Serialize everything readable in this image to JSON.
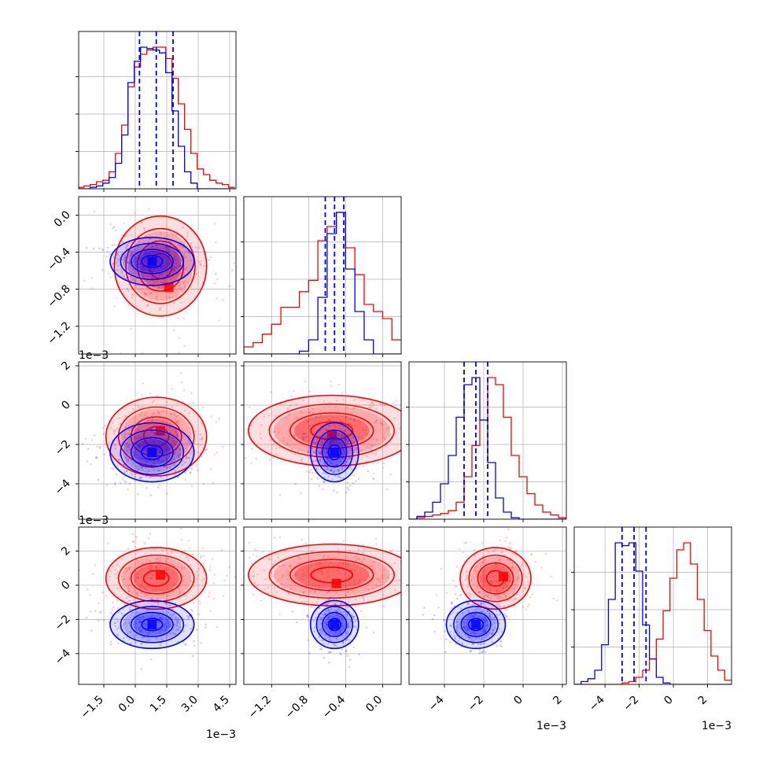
{
  "chart_data": {
    "type": "corner",
    "grid": true,
    "colors": {
      "series_a": "#ff0000",
      "series_b": "#0000ff"
    },
    "parameters": [
      {
        "ticks": [
          -1.5,
          0.0,
          1.5,
          3.0,
          4.5
        ],
        "tick_labels": [
          "−1.5",
          "0.0",
          "1.5",
          "3.0",
          "4.5"
        ],
        "range": [
          -2.7,
          4.8
        ],
        "offset_label": "1e−3"
      },
      {
        "ticks": [
          -1.2,
          -0.8,
          -0.4,
          0.0
        ],
        "tick_labels": [
          "−1.2",
          "−0.8",
          "−0.4",
          "0.0"
        ],
        "range": [
          -1.5,
          0.2
        ],
        "offset_label": "1e−3"
      },
      {
        "ticks": [
          -4,
          -2,
          0,
          2
        ],
        "tick_labels": [
          "−4",
          "−2",
          "0",
          "2"
        ],
        "range": [
          -5.8,
          2.2
        ],
        "offset_label": "1e−3"
      },
      {
        "ticks": [
          -4,
          -2,
          0,
          2
        ],
        "tick_labels": [
          "−4",
          "−2",
          "0",
          "2"
        ],
        "range": [
          -5.8,
          3.4
        ],
        "offset_label": "1e−3"
      }
    ],
    "series": [
      {
        "color": "red",
        "marginals": [
          {
            "x": [
              -2.6,
              -2.3,
              -2.0,
              -1.7,
              -1.4,
              -1.1,
              -0.8,
              -0.5,
              -0.2,
              0.1,
              0.4,
              0.7,
              1.0,
              1.3,
              1.6,
              1.9,
              2.2,
              2.5,
              2.8,
              3.1,
              3.4,
              3.7,
              4.0,
              4.3,
              4.6
            ],
            "y": [
              0.01,
              0.02,
              0.03,
              0.05,
              0.06,
              0.12,
              0.25,
              0.45,
              0.72,
              0.86,
              0.95,
              0.98,
              1.0,
              1.0,
              0.92,
              0.78,
              0.6,
              0.42,
              0.25,
              0.14,
              0.1,
              0.06,
              0.04,
              0.03,
              0.01
            ]
          },
          {
            "x": [
              -1.45,
              -1.35,
              -1.25,
              -1.15,
              -1.05,
              -0.95,
              -0.85,
              -0.75,
              -0.65,
              -0.55,
              -0.45,
              -0.35,
              -0.25,
              -0.15,
              -0.05,
              0.05,
              0.15
            ],
            "y": [
              0.05,
              0.08,
              0.14,
              0.21,
              0.33,
              0.33,
              0.44,
              0.52,
              0.8,
              0.9,
              1.0,
              0.75,
              0.56,
              0.35,
              0.3,
              0.25,
              0.1
            ]
          },
          {
            "x": [
              -5.6,
              -5.2,
              -4.8,
              -4.4,
              -4.0,
              -3.6,
              -3.2,
              -2.8,
              -2.4,
              -2.0,
              -1.6,
              -1.2,
              -0.8,
              -0.4,
              0.0,
              0.4,
              0.8,
              1.2,
              1.6,
              2.0
            ],
            "y": [
              0.0,
              0.01,
              0.02,
              0.03,
              0.04,
              0.06,
              0.12,
              0.3,
              0.52,
              0.7,
              1.0,
              0.95,
              0.72,
              0.45,
              0.3,
              0.18,
              0.1,
              0.05,
              0.03,
              0.01
            ]
          },
          {
            "x": [
              -5.6,
              -5.2,
              -4.8,
              -4.4,
              -4.0,
              -3.6,
              -3.2,
              -2.8,
              -2.4,
              -2.0,
              -1.6,
              -1.2,
              -0.8,
              -0.4,
              0.0,
              0.4,
              0.8,
              1.2,
              1.6,
              2.0,
              2.4,
              2.8,
              3.2
            ],
            "y": [
              0.0,
              0.0,
              0.0,
              0.0,
              0.0,
              0.0,
              0.0,
              0.01,
              0.02,
              0.05,
              0.1,
              0.18,
              0.32,
              0.52,
              0.75,
              0.95,
              1.0,
              0.85,
              0.6,
              0.38,
              0.2,
              0.1,
              0.03
            ]
          }
        ],
        "contours_2d": [
          {
            "px": 0,
            "py": 1,
            "center": [
              1.2,
              -0.55
            ],
            "sigma": [
              1.1,
              0.27
            ],
            "peak": [
              1.6,
              -0.78
            ]
          },
          {
            "px": 0,
            "py": 2,
            "center": [
              1.0,
              -1.6
            ],
            "sigma": [
              1.2,
              1.0
            ],
            "peak": [
              1.2,
              -1.3
            ]
          },
          {
            "px": 1,
            "py": 2,
            "center": [
              -0.55,
              -1.3
            ],
            "sigma": [
              0.45,
              0.9
            ],
            "peak": [
              -0.55,
              -1.5
            ]
          },
          {
            "px": 0,
            "py": 3,
            "center": [
              1.0,
              0.4
            ],
            "sigma": [
              1.2,
              0.9
            ],
            "peak": [
              1.2,
              0.6
            ]
          },
          {
            "px": 1,
            "py": 3,
            "center": [
              -0.55,
              0.6
            ],
            "sigma": [
              0.45,
              0.9
            ],
            "peak": [
              -0.5,
              0.1
            ]
          },
          {
            "px": 2,
            "py": 3,
            "center": [
              -1.4,
              0.4
            ],
            "sigma": [
              0.9,
              0.9
            ],
            "peak": [
              -1.0,
              0.5
            ]
          }
        ]
      },
      {
        "color": "blue",
        "marginals": [
          {
            "x": [
              -2.6,
              -2.3,
              -2.0,
              -1.7,
              -1.4,
              -1.1,
              -0.8,
              -0.5,
              -0.2,
              0.1,
              0.4,
              0.7,
              1.0,
              1.3,
              1.6,
              1.9,
              2.2,
              2.5,
              2.8,
              3.1,
              3.4,
              3.7,
              4.0,
              4.3,
              4.6
            ],
            "y": [
              0.0,
              0.0,
              0.01,
              0.02,
              0.04,
              0.08,
              0.18,
              0.38,
              0.75,
              0.9,
              1.0,
              0.99,
              0.98,
              0.96,
              0.82,
              0.55,
              0.3,
              0.12,
              0.04,
              0.0,
              0.0,
              0.0,
              0.0,
              0.0,
              0.0
            ]
          },
          {
            "x": [
              -1.45,
              -1.35,
              -1.25,
              -1.15,
              -1.05,
              -0.95,
              -0.85,
              -0.75,
              -0.65,
              -0.55,
              -0.45,
              -0.35,
              -0.25,
              -0.15,
              -0.05,
              0.05,
              0.15
            ],
            "y": [
              0.0,
              0.0,
              0.0,
              0.0,
              0.0,
              0.0,
              0.02,
              0.1,
              0.4,
              0.85,
              1.0,
              0.6,
              0.3,
              0.1,
              0.0,
              0.0,
              0.0
            ]
          },
          {
            "x": [
              -5.6,
              -5.2,
              -4.8,
              -4.4,
              -4.0,
              -3.6,
              -3.2,
              -2.8,
              -2.4,
              -2.0,
              -1.6,
              -1.2,
              -0.8,
              -0.4,
              0.0,
              0.4,
              0.8,
              1.2,
              1.6,
              2.0
            ],
            "y": [
              0.0,
              0.02,
              0.05,
              0.12,
              0.25,
              0.45,
              0.72,
              0.95,
              1.0,
              0.7,
              0.4,
              0.15,
              0.05,
              0.01,
              0.0,
              0.0,
              0.0,
              0.0,
              0.0,
              0.0
            ]
          },
          {
            "x": [
              -5.6,
              -5.2,
              -4.8,
              -4.4,
              -4.0,
              -3.6,
              -3.2,
              -2.8,
              -2.4,
              -2.0,
              -1.6,
              -1.2,
              -0.8,
              -0.4,
              0.0,
              0.4,
              0.8,
              1.2,
              1.6,
              2.0,
              2.4,
              2.8,
              3.2
            ],
            "y": [
              0.0,
              0.02,
              0.04,
              0.1,
              0.28,
              0.6,
              1.0,
              0.98,
              1.0,
              0.8,
              0.42,
              0.18,
              0.05,
              0.01,
              0.0,
              0.0,
              0.0,
              0.0,
              0.0,
              0.0,
              0.0,
              0.0,
              0.0
            ]
          }
        ],
        "quantiles": [
          [
            0.2,
            1.0,
            1.8
          ],
          [
            -0.62,
            -0.52,
            -0.42
          ],
          [
            -3.0,
            -2.4,
            -1.8
          ],
          [
            -3.0,
            -2.3,
            -1.6
          ]
        ],
        "contours_2d": [
          {
            "px": 0,
            "py": 1,
            "center": [
              0.8,
              -0.5
            ],
            "sigma": [
              1.0,
              0.13
            ],
            "peak": [
              0.8,
              -0.5
            ]
          },
          {
            "px": 0,
            "py": 2,
            "center": [
              0.8,
              -2.4
            ],
            "sigma": [
              1.0,
              0.75
            ],
            "peak": [
              0.8,
              -2.4
            ]
          },
          {
            "px": 1,
            "py": 2,
            "center": [
              -0.52,
              -2.4
            ],
            "sigma": [
              0.13,
              0.75
            ],
            "peak": [
              -0.52,
              -2.4
            ]
          },
          {
            "px": 0,
            "py": 3,
            "center": [
              0.8,
              -2.3
            ],
            "sigma": [
              1.0,
              0.7
            ],
            "peak": [
              0.8,
              -2.3
            ]
          },
          {
            "px": 1,
            "py": 3,
            "center": [
              -0.52,
              -2.3
            ],
            "sigma": [
              0.13,
              0.7
            ],
            "peak": [
              -0.52,
              -2.3
            ]
          },
          {
            "px": 2,
            "py": 3,
            "center": [
              -2.4,
              -2.3
            ],
            "sigma": [
              0.75,
              0.7
            ],
            "peak": [
              -2.4,
              -2.3
            ]
          }
        ]
      }
    ],
    "contour_levels_sigma": [
      0.5,
      1.0,
      1.5,
      2.0
    ]
  }
}
